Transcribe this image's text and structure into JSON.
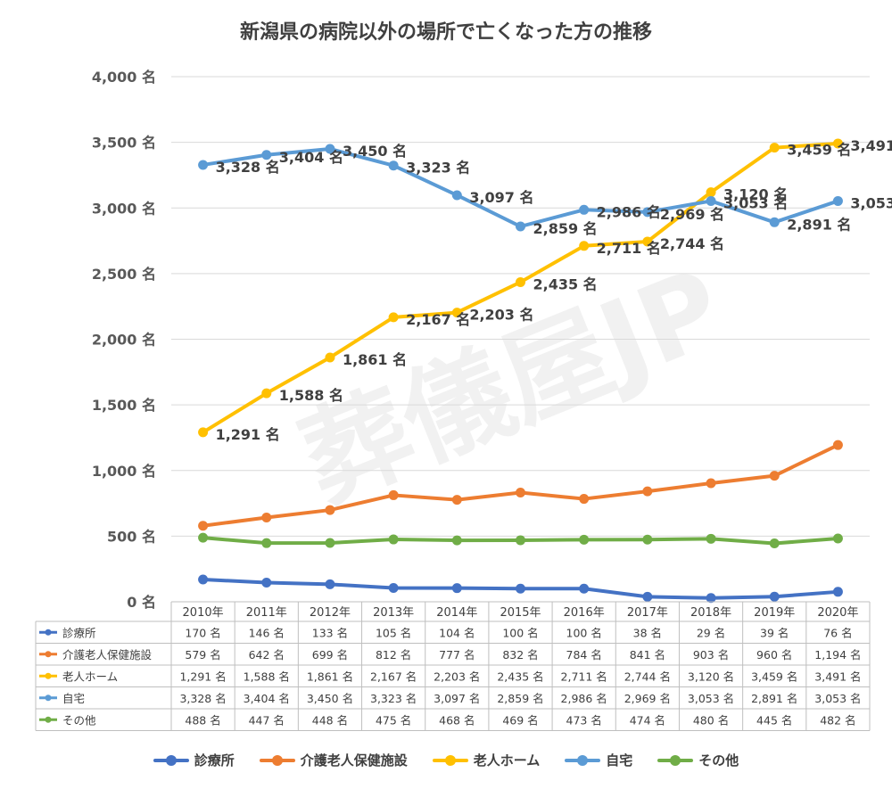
{
  "chart_data": {
    "type": "line",
    "title": "新潟県の病院以外の場所で亡くなった方の推移",
    "watermark": "葬儀屋JP",
    "categories": [
      "2010年",
      "2011年",
      "2012年",
      "2013年",
      "2014年",
      "2015年",
      "2016年",
      "2017年",
      "2018年",
      "2019年",
      "2020年"
    ],
    "ylim": [
      0,
      4000
    ],
    "yticks": [
      0,
      500,
      1000,
      1500,
      2000,
      2500,
      3000,
      3500,
      4000
    ],
    "unit": "名",
    "grid": true,
    "legend_position": "bottom",
    "series": [
      {
        "name": "診療所",
        "color": "#4472c4",
        "values": [
          170,
          146,
          133,
          105,
          104,
          100,
          100,
          38,
          29,
          39,
          76
        ]
      },
      {
        "name": "介護老人保健施設",
        "color": "#ed7d31",
        "values": [
          579,
          642,
          699,
          812,
          777,
          832,
          784,
          841,
          903,
          960,
          1194
        ]
      },
      {
        "name": "老人ホーム",
        "color": "#ffc000",
        "values": [
          1291,
          1588,
          1861,
          2167,
          2203,
          2435,
          2711,
          2744,
          3120,
          3459,
          3491
        ],
        "labels": true
      },
      {
        "name": "自宅",
        "color": "#5b9bd5",
        "values": [
          3328,
          3404,
          3450,
          3323,
          3097,
          2859,
          2986,
          2969,
          3053,
          2891,
          3053
        ],
        "labels": true
      },
      {
        "name": "その他",
        "color": "#70ad47",
        "values": [
          488,
          447,
          448,
          475,
          468,
          469,
          473,
          474,
          480,
          445,
          482
        ]
      }
    ]
  }
}
